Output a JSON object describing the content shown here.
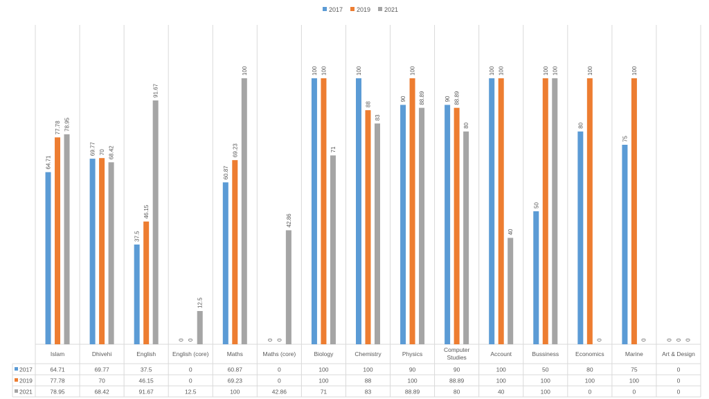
{
  "chart_data": {
    "type": "bar",
    "categories": [
      "Islam",
      "Dhivehi",
      "English",
      "English (core)",
      "Maths",
      "Maths (core)",
      "Biology",
      "Chemistry",
      "Physics",
      "Computer Studies",
      "Account",
      "Bussiness",
      "Economics",
      "Marine",
      "Art & Design"
    ],
    "series": [
      {
        "name": "2017",
        "color": "#5B9BD5",
        "values": [
          64.71,
          69.77,
          37.5,
          0,
          60.87,
          0,
          100,
          100,
          90,
          90,
          100,
          50,
          80,
          75,
          0
        ]
      },
      {
        "name": "2019",
        "color": "#ED7D31",
        "values": [
          77.78,
          70,
          46.15,
          0,
          69.23,
          0,
          100,
          88,
          100,
          88.89,
          100,
          100,
          100,
          100,
          0
        ]
      },
      {
        "name": "2021",
        "color": "#A5A5A5",
        "values": [
          78.95,
          68.42,
          91.67,
          12.5,
          100,
          42.86,
          71,
          83,
          88.89,
          80,
          40,
          100,
          0,
          0,
          0
        ]
      }
    ],
    "title": "",
    "xlabel": "",
    "ylabel": "",
    "ylim": [
      0,
      100
    ],
    "grid": "vertical category separators",
    "legend": "top-center",
    "data_labels": true,
    "data_table": true
  }
}
